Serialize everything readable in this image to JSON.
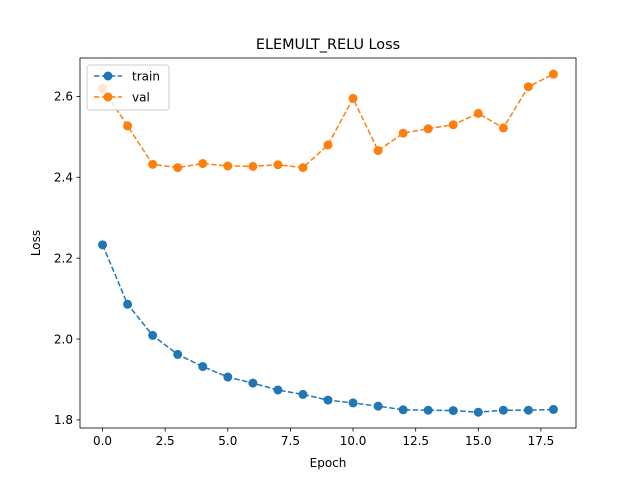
{
  "chart_data": {
    "type": "line",
    "title": "ELEMULT_RELU Loss",
    "xlabel": "Epoch",
    "ylabel": "Loss",
    "xlim": [
      -0.9,
      18.9
    ],
    "ylim": [
      1.78,
      2.695
    ],
    "x": [
      0,
      1,
      2,
      3,
      4,
      5,
      6,
      7,
      8,
      9,
      10,
      11,
      12,
      13,
      14,
      15,
      16,
      17,
      18
    ],
    "xticks": [
      0.0,
      2.5,
      5.0,
      7.5,
      10.0,
      12.5,
      15.0,
      17.5
    ],
    "xtick_labels": [
      "0.0",
      "2.5",
      "5.0",
      "7.5",
      "10.0",
      "12.5",
      "15.0",
      "17.5"
    ],
    "yticks": [
      1.8,
      2.0,
      2.2,
      2.4,
      2.6
    ],
    "ytick_labels": [
      "1.8",
      "2.0",
      "2.2",
      "2.4",
      "2.6"
    ],
    "grid": false,
    "legend_position": "top-left",
    "series": [
      {
        "name": "train",
        "color": "#1f77b4",
        "line_style": "dashed",
        "marker": "circle",
        "values": [
          2.233,
          2.086,
          2.009,
          1.962,
          1.932,
          1.906,
          1.891,
          1.874,
          1.863,
          1.849,
          1.842,
          1.834,
          1.825,
          1.824,
          1.823,
          1.819,
          1.824,
          1.824,
          1.826
        ]
      },
      {
        "name": "val",
        "color": "#ff7f0e",
        "line_style": "dashed",
        "marker": "circle",
        "values": [
          2.62,
          2.527,
          2.432,
          2.424,
          2.434,
          2.428,
          2.427,
          2.431,
          2.424,
          2.48,
          2.595,
          2.466,
          2.509,
          2.52,
          2.53,
          2.558,
          2.522,
          2.624,
          2.655
        ]
      }
    ]
  }
}
